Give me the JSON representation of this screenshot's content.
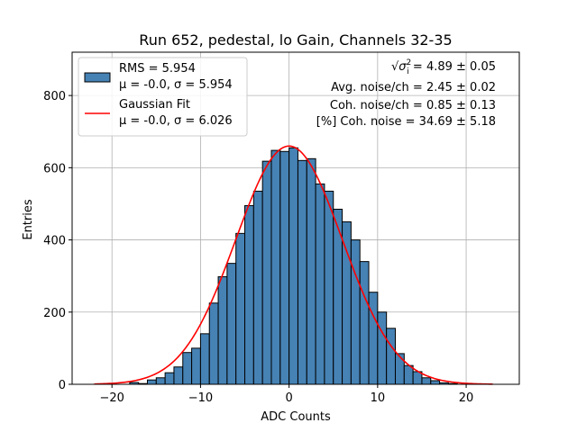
{
  "chart_data": {
    "type": "bar",
    "title": "Run 652, pedestal, lo Gain, Channels 32-35",
    "xlabel": "ADC Counts",
    "ylabel": "Entries",
    "xlim": [
      -24.5,
      26
    ],
    "ylim": [
      0,
      920
    ],
    "xticks": [
      -20,
      -10,
      0,
      10,
      20
    ],
    "yticks": [
      0,
      200,
      400,
      600,
      800
    ],
    "grid": true,
    "legend_position": "top-left",
    "bar_color": "#4682b4",
    "fit_color": "#ff0000",
    "bin_width": 1,
    "histogram": {
      "name": "RMS = 5.954",
      "name_line2": "μ = -0.0, σ = 5.954",
      "bin_edges_start": -18,
      "values": [
        5,
        2,
        12,
        18,
        32,
        48,
        88,
        100,
        140,
        225,
        298,
        335,
        418,
        495,
        535,
        618,
        648,
        645,
        655,
        620,
        625,
        555,
        535,
        485,
        450,
        400,
        340,
        255,
        200,
        155,
        85,
        52,
        35,
        18,
        10,
        4,
        2
      ]
    },
    "fit": {
      "name": "Gaussian Fit",
      "name_line2": "μ = -0.0, σ = 6.026",
      "mu": 0.0,
      "sigma": 6.026,
      "amplitude": 660,
      "x_range": [
        -22,
        23
      ]
    },
    "annotations": [
      {
        "prefix": "√",
        "sym": "σ",
        "sub": "i",
        "sup": "2",
        "text": " = 4.89 ± 0.05"
      },
      {
        "text": "Avg. noise/ch = 2.45 ± 0.02"
      },
      {
        "text": "Coh. noise/ch = 0.85 ± 0.13"
      },
      {
        "text": "[%] Coh. noise = 34.69 ± 5.18"
      }
    ]
  }
}
